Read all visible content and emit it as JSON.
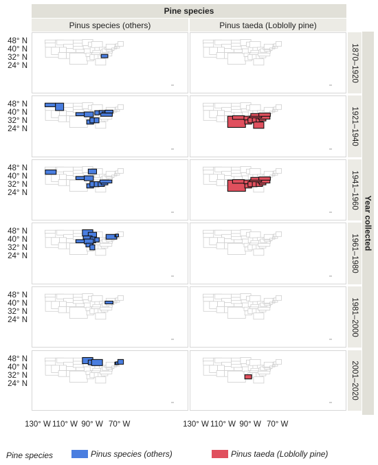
{
  "header": {
    "title": "Pine species",
    "columns": [
      "Pinus species (others)",
      "Pinus taeda (Loblolly pine)"
    ],
    "row_title": "Year collected",
    "rows": [
      "1870–1920",
      "1921–1940",
      "1941–1960",
      "1961–1980",
      "1981–2000",
      "2001–2020"
    ]
  },
  "axes": {
    "y_ticks": [
      "48° N",
      "40° N",
      "32° N",
      "24° N"
    ],
    "x_ticks": [
      "130° W",
      "110° W",
      "90° W",
      "70° W"
    ]
  },
  "legend": {
    "title": "Pine species",
    "items": [
      {
        "label": "Pinus species (others)",
        "color": "#4a7ee0"
      },
      {
        "label": "Pinus taeda (Loblolly pine)",
        "color": "#e0505e"
      }
    ]
  },
  "colors": {
    "others": "#4a7ee0",
    "taeda": "#e0505e",
    "state_border": "#cfcfcf"
  },
  "highlighted_states": [
    {
      "period": "1870–1920",
      "others": [
        "SC"
      ],
      "taeda": []
    },
    {
      "period": "1921–1940",
      "others": [
        "WA",
        "ID",
        "KS",
        "MO",
        "IN",
        "OH",
        "WV",
        "PA",
        "VA",
        "LA",
        "MS",
        "AL"
      ],
      "taeda": [
        "TX",
        "OK",
        "AR",
        "LA",
        "MS",
        "AL",
        "GA",
        "FL",
        "SC",
        "NC",
        "TN",
        "KY",
        "VA"
      ]
    },
    {
      "period": "1941–1960",
      "others": [
        "OR",
        "KS",
        "MO",
        "WI",
        "LA",
        "MS",
        "AL",
        "GA",
        "SC",
        "NC"
      ],
      "taeda": [
        "TX",
        "OK",
        "AR",
        "LA",
        "MS",
        "AL",
        "GA",
        "SC",
        "NC",
        "TN",
        "KY",
        "VA"
      ]
    },
    {
      "period": "1961–1980",
      "others": [
        "MN",
        "WI",
        "IA",
        "IL",
        "KS",
        "MO",
        "AR",
        "IN",
        "MS",
        "NY",
        "VT",
        "NH"
      ],
      "taeda": []
    },
    {
      "period": "1981–2000",
      "others": [
        "PA"
      ],
      "taeda": []
    },
    {
      "period": "2001–2020",
      "others": [
        "MN",
        "WI",
        "MI",
        "VT",
        "NH",
        "ME"
      ],
      "taeda": [
        "LA"
      ]
    }
  ]
}
